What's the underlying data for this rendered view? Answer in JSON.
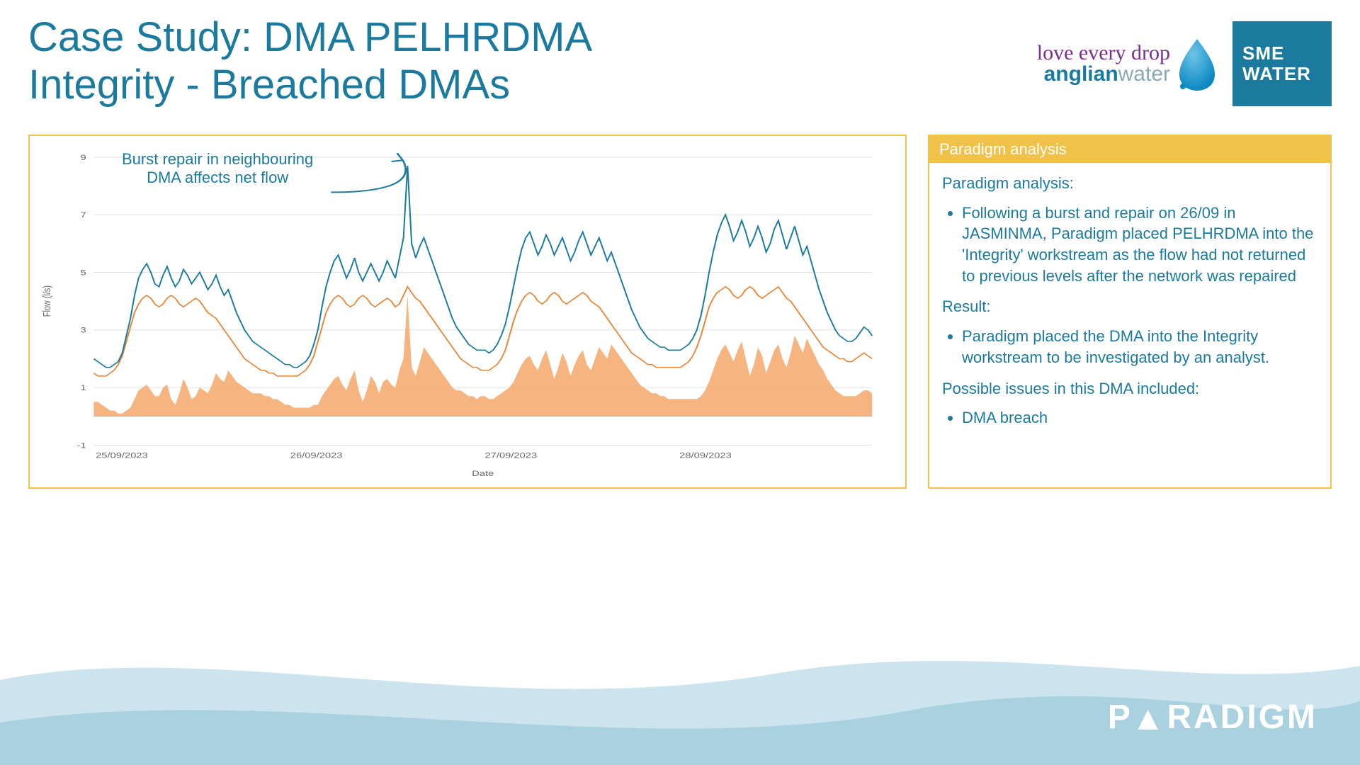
{
  "title_line1": "Case Study: DMA PELHRDMA",
  "title_line2": "Integrity - Breached DMAs",
  "logos": {
    "anglian_script": "love every drop",
    "anglian_main_a": "anglian",
    "anglian_main_w": "water",
    "sme_line1": "SME",
    "sme_line2": "WATER"
  },
  "annotation": {
    "line1": "Burst repair in neighbouring",
    "line2": "DMA affects net flow"
  },
  "side": {
    "header": "Paradigm analysis",
    "p1": "Paradigm analysis:",
    "b1": "Following a burst and repair on 26/09 in JASMINMA, Paradigm placed PELHRDMA into the 'Integrity' workstream as the flow had not returned to previous levels after the network was repaired",
    "p2": "Result:",
    "b2": "Paradigm placed the DMA into the Integrity workstream to be investigated by an analyst.",
    "p3": "Possible issues in this DMA included:",
    "b3": "DMA breach"
  },
  "footer_logo": "PARADIGM",
  "chart": {
    "type": "line+area",
    "x_label": "Date",
    "y_label": "Flow (l/s)",
    "x_ticks": [
      "25/09/2023",
      "26/09/2023",
      "27/09/2023",
      "28/09/2023"
    ],
    "y_ticks": [
      -1,
      1,
      3,
      5,
      7,
      9
    ],
    "ylim": [
      -1,
      9
    ],
    "colors": {
      "line_actual": "#1b7a9e",
      "line_predicted": "#e8873a",
      "area_diff": "#f4a86a",
      "grid": "#e0e0e0",
      "background": "#ffffff",
      "axis_text": "#666666"
    },
    "line_width": 1.5,
    "points_per_day": 48,
    "series_actual": [
      2.0,
      1.9,
      1.8,
      1.7,
      1.7,
      1.8,
      1.9,
      2.2,
      2.8,
      3.4,
      4.2,
      4.8,
      5.1,
      5.3,
      5.0,
      4.6,
      4.5,
      4.9,
      5.2,
      4.8,
      4.5,
      4.7,
      5.1,
      4.9,
      4.6,
      4.8,
      5.0,
      4.7,
      4.4,
      4.6,
      4.9,
      4.5,
      4.2,
      4.4,
      4.0,
      3.6,
      3.3,
      3.0,
      2.8,
      2.6,
      2.5,
      2.4,
      2.3,
      2.2,
      2.1,
      2.0,
      1.9,
      1.8,
      1.8,
      1.7,
      1.7,
      1.8,
      1.9,
      2.1,
      2.5,
      3.0,
      3.8,
      4.5,
      5.0,
      5.4,
      5.6,
      5.2,
      4.8,
      5.1,
      5.5,
      5.0,
      4.7,
      5.0,
      5.3,
      5.0,
      4.7,
      5.0,
      5.4,
      5.1,
      4.8,
      5.5,
      6.2,
      8.7,
      6.0,
      5.5,
      5.9,
      6.2,
      5.8,
      5.4,
      5.0,
      4.6,
      4.2,
      3.8,
      3.4,
      3.1,
      2.9,
      2.7,
      2.5,
      2.4,
      2.3,
      2.3,
      2.3,
      2.2,
      2.3,
      2.5,
      2.8,
      3.2,
      3.8,
      4.5,
      5.2,
      5.8,
      6.2,
      6.4,
      6.0,
      5.6,
      5.9,
      6.3,
      6.0,
      5.6,
      5.9,
      6.2,
      5.8,
      5.4,
      5.7,
      6.1,
      6.4,
      6.0,
      5.6,
      5.9,
      6.2,
      5.8,
      5.4,
      5.7,
      5.3,
      4.9,
      4.5,
      4.1,
      3.7,
      3.4,
      3.1,
      2.9,
      2.7,
      2.6,
      2.5,
      2.4,
      2.4,
      2.3,
      2.3,
      2.3,
      2.3,
      2.4,
      2.5,
      2.7,
      3.0,
      3.5,
      4.2,
      5.0,
      5.7,
      6.3,
      6.7,
      7.0,
      6.6,
      6.1,
      6.4,
      6.8,
      6.4,
      5.9,
      6.2,
      6.6,
      6.2,
      5.7,
      6.0,
      6.5,
      6.8,
      6.3,
      5.8,
      6.2,
      6.6,
      6.1,
      5.6,
      5.9,
      5.4,
      4.9,
      4.4,
      4.0,
      3.6,
      3.3,
      3.0,
      2.8,
      2.7,
      2.6,
      2.6,
      2.7,
      2.9,
      3.1,
      3.0,
      2.8
    ],
    "series_predicted": [
      1.5,
      1.4,
      1.4,
      1.4,
      1.5,
      1.6,
      1.8,
      2.1,
      2.6,
      3.1,
      3.6,
      3.9,
      4.1,
      4.2,
      4.1,
      3.9,
      3.8,
      3.9,
      4.1,
      4.2,
      4.1,
      3.9,
      3.8,
      3.9,
      4.0,
      4.1,
      4.0,
      3.8,
      3.6,
      3.5,
      3.4,
      3.2,
      3.0,
      2.8,
      2.6,
      2.4,
      2.2,
      2.0,
      1.9,
      1.8,
      1.7,
      1.6,
      1.6,
      1.5,
      1.5,
      1.4,
      1.4,
      1.4,
      1.4,
      1.4,
      1.4,
      1.5,
      1.6,
      1.8,
      2.1,
      2.6,
      3.1,
      3.6,
      3.9,
      4.1,
      4.2,
      4.1,
      3.9,
      3.8,
      3.9,
      4.1,
      4.2,
      4.1,
      3.9,
      3.8,
      3.9,
      4.0,
      4.1,
      4.0,
      3.8,
      3.9,
      4.2,
      4.5,
      4.3,
      4.1,
      4.0,
      3.8,
      3.6,
      3.4,
      3.2,
      3.0,
      2.8,
      2.6,
      2.4,
      2.2,
      2.0,
      1.9,
      1.8,
      1.7,
      1.7,
      1.6,
      1.6,
      1.6,
      1.7,
      1.8,
      2.0,
      2.3,
      2.8,
      3.3,
      3.7,
      4.0,
      4.2,
      4.3,
      4.2,
      4.0,
      3.9,
      4.0,
      4.2,
      4.3,
      4.2,
      4.0,
      3.9,
      4.0,
      4.1,
      4.2,
      4.3,
      4.2,
      4.0,
      3.9,
      3.8,
      3.6,
      3.4,
      3.2,
      3.0,
      2.8,
      2.6,
      2.4,
      2.2,
      2.1,
      2.0,
      1.9,
      1.8,
      1.8,
      1.7,
      1.7,
      1.7,
      1.7,
      1.7,
      1.7,
      1.7,
      1.8,
      1.9,
      2.1,
      2.4,
      2.8,
      3.3,
      3.8,
      4.1,
      4.3,
      4.4,
      4.5,
      4.4,
      4.2,
      4.1,
      4.2,
      4.4,
      4.5,
      4.4,
      4.2,
      4.1,
      4.2,
      4.3,
      4.4,
      4.5,
      4.3,
      4.1,
      4.0,
      3.8,
      3.6,
      3.4,
      3.2,
      3.0,
      2.8,
      2.6,
      2.4,
      2.3,
      2.2,
      2.1,
      2.0,
      2.0,
      1.9,
      1.9,
      2.0,
      2.1,
      2.2,
      2.1,
      2.0
    ],
    "series_diff": [
      0.5,
      0.5,
      0.4,
      0.3,
      0.2,
      0.2,
      0.1,
      0.1,
      0.2,
      0.3,
      0.6,
      0.9,
      1.0,
      1.1,
      0.9,
      0.7,
      0.7,
      1.0,
      1.1,
      0.6,
      0.4,
      0.8,
      1.3,
      1.0,
      0.6,
      0.7,
      1.0,
      0.9,
      0.8,
      1.1,
      1.5,
      1.3,
      1.2,
      1.6,
      1.4,
      1.2,
      1.1,
      1.0,
      0.9,
      0.8,
      0.8,
      0.8,
      0.7,
      0.7,
      0.6,
      0.6,
      0.5,
      0.4,
      0.4,
      0.3,
      0.3,
      0.3,
      0.3,
      0.3,
      0.4,
      0.4,
      0.7,
      0.9,
      1.1,
      1.3,
      1.4,
      1.1,
      0.9,
      1.3,
      1.6,
      0.9,
      0.5,
      0.9,
      1.4,
      1.2,
      0.8,
      1.2,
      1.3,
      1.1,
      1.0,
      1.6,
      2.0,
      4.2,
      1.7,
      1.4,
      1.9,
      2.4,
      2.2,
      2.0,
      1.8,
      1.6,
      1.4,
      1.2,
      1.0,
      0.9,
      0.9,
      0.8,
      0.7,
      0.7,
      0.6,
      0.7,
      0.7,
      0.6,
      0.6,
      0.7,
      0.8,
      0.9,
      1.0,
      1.2,
      1.5,
      1.8,
      2.0,
      2.1,
      1.8,
      1.6,
      2.0,
      2.3,
      1.8,
      1.3,
      1.7,
      2.2,
      1.9,
      1.4,
      1.8,
      2.1,
      2.3,
      1.8,
      1.6,
      2.0,
      2.4,
      2.2,
      2.0,
      2.5,
      2.3,
      2.1,
      1.9,
      1.7,
      1.5,
      1.3,
      1.1,
      1.0,
      0.9,
      0.8,
      0.8,
      0.7,
      0.7,
      0.6,
      0.6,
      0.6,
      0.6,
      0.6,
      0.6,
      0.6,
      0.6,
      0.7,
      0.9,
      1.2,
      1.6,
      2.0,
      2.3,
      2.5,
      2.2,
      1.9,
      2.3,
      2.6,
      2.0,
      1.4,
      1.8,
      2.4,
      2.1,
      1.5,
      1.9,
      2.3,
      2.5,
      2.0,
      1.7,
      2.2,
      2.8,
      2.5,
      2.2,
      2.7,
      2.4,
      2.1,
      1.8,
      1.6,
      1.3,
      1.1,
      0.9,
      0.8,
      0.7,
      0.7,
      0.7,
      0.7,
      0.8,
      0.9,
      0.9,
      0.8
    ]
  },
  "waves": {
    "color_light": "#cce4ed",
    "color_dark": "#a9d1e0"
  }
}
